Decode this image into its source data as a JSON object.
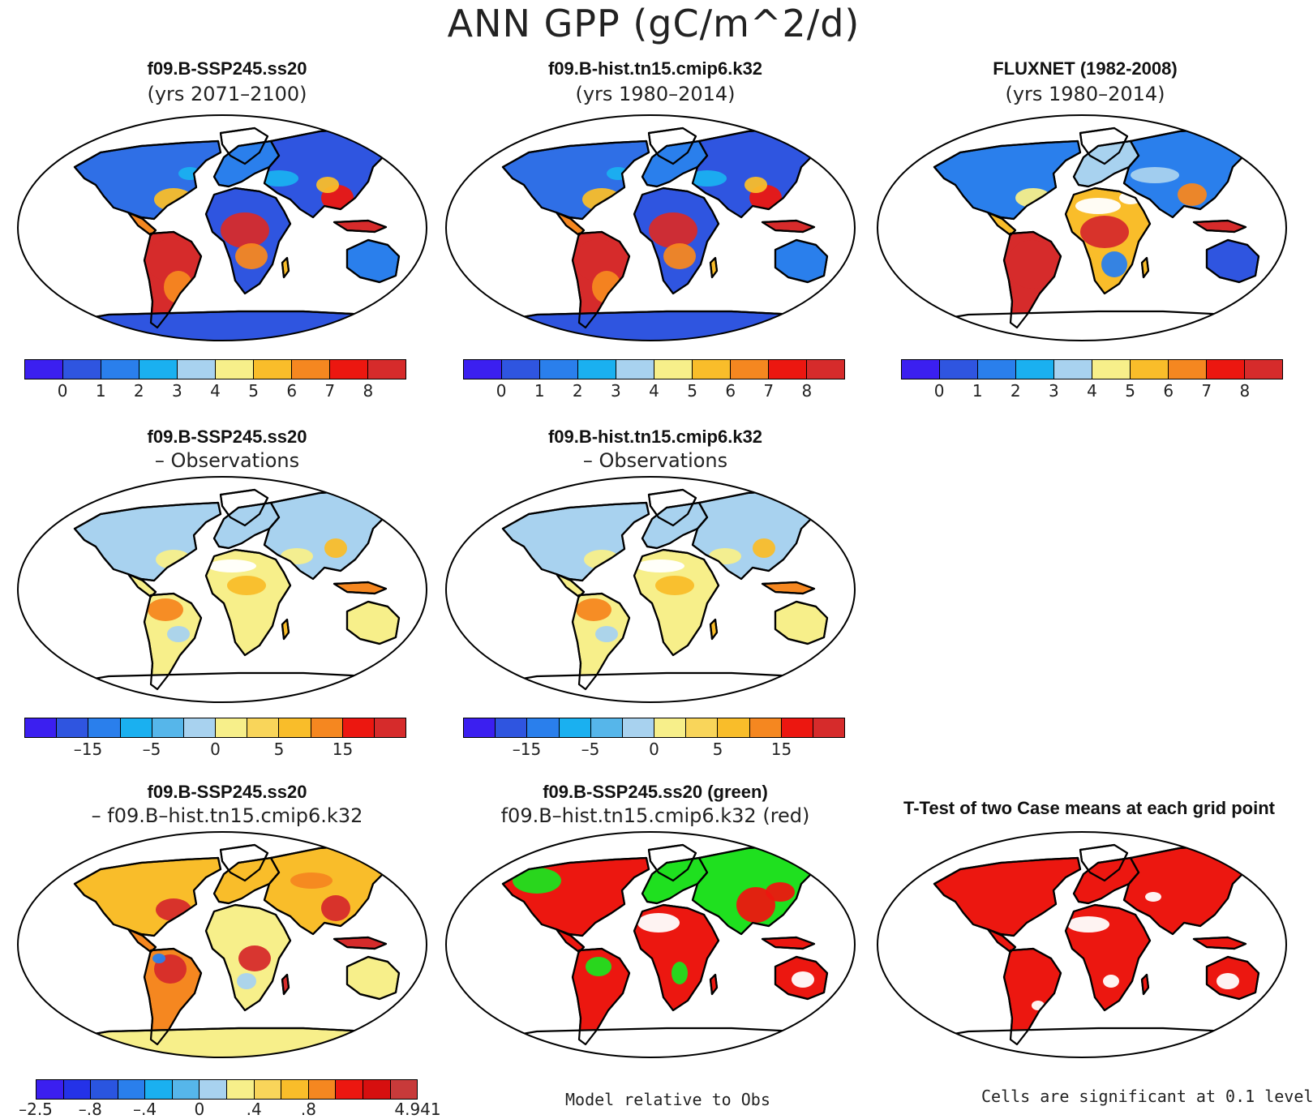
{
  "title": "ANN GPP (gC/m^2/d)",
  "palettes": {
    "abs": [
      "#3b1ff0",
      "#2f55e0",
      "#2a7fec",
      "#1ab0f0",
      "#a8d2ef",
      "#f7ef8a",
      "#f9bd2a",
      "#f58720",
      "#ec1710",
      "#d62b2b"
    ],
    "diff": [
      "#3b1ff0",
      "#2f55e0",
      "#2a7fec",
      "#1ab0f0",
      "#56b6ea",
      "#a8d2ef",
      "#f7ef8a",
      "#f9d55a",
      "#f9bd2a",
      "#f58720",
      "#ec1710",
      "#d62b2b"
    ],
    "test": [
      "#3b1ff0",
      "#2432e8",
      "#2a55e0",
      "#2a7fec",
      "#1ab0f0",
      "#56b6ea",
      "#a8d2ef",
      "#f7ef8a",
      "#f9d55a",
      "#f9bd2a",
      "#f58720",
      "#ec1710",
      "#d60f0f",
      "#c83a3a"
    ]
  },
  "panels": [
    {
      "line1": "f09.B-SSP245.ss20",
      "line2": "(yrs 2071–2100)",
      "scheme": "abs"
    },
    {
      "line1": "f09.B-hist.tn15.cmip6.k32",
      "line2": "(yrs 1980–2014)",
      "scheme": "abs"
    },
    {
      "line1": "FLUXNET (1982-2008)",
      "line2": "(yrs 1980–2014)",
      "scheme": "obs"
    },
    {
      "line1": "f09.B-SSP245.ss20",
      "line2": "– Observations",
      "scheme": "bias"
    },
    {
      "line1": "f09.B-hist.tn15.cmip6.k32",
      "line2": "– Observations",
      "scheme": "bias"
    },
    {
      "line1": "f09.B-SSP245.ss20",
      "line2": "– f09.B–hist.tn15.cmip6.k32",
      "scheme": "diff"
    },
    {
      "line1": "f09.B-SSP245.ss20 (green)",
      "line2": "f09.B–hist.tn15.cmip6.k32 (red)",
      "scheme": "compare"
    },
    {
      "line1": "T-Test of two Case means at each grid point",
      "line2": "",
      "scheme": "ttest"
    }
  ],
  "colorbars": {
    "abs": [
      "0",
      "1",
      "2",
      "3",
      "4",
      "5",
      "6",
      "7",
      "8"
    ],
    "bias": [
      "–15",
      "–5",
      "0",
      "5",
      "15"
    ],
    "diff": [
      "–2.5",
      "–.8",
      "–.4",
      "0",
      ".4",
      ".8",
      "4.941"
    ]
  },
  "notes": {
    "model_rel_obs": "Model relative to Obs",
    "significance": "Cells are significant at 0.1 level"
  }
}
